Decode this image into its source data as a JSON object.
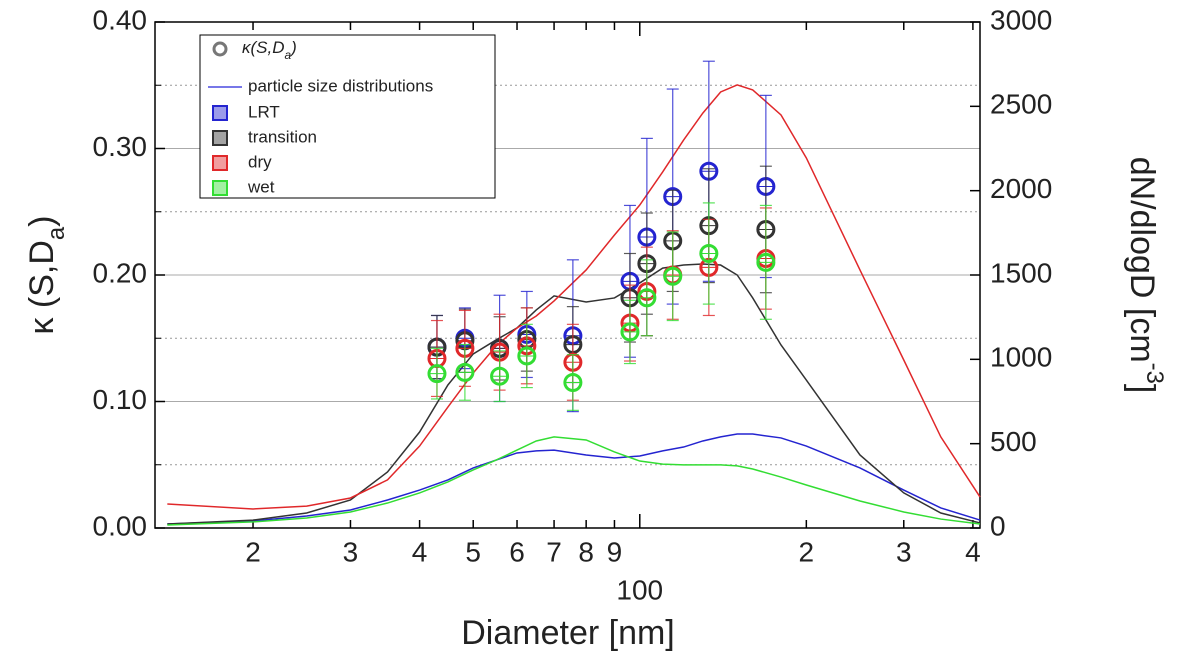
{
  "chart_data": {
    "type": "scatter",
    "xlabel": "Diameter [nm]",
    "ylabel": [
      "κ (S,D",
      "a",
      ")"
    ],
    "y2label": [
      "dN/dlogD [cm",
      "-3",
      "]"
    ],
    "log_x": true,
    "xlim": [
      13.3,
      412
    ],
    "xticks": [
      {
        "value": 20,
        "label": "2"
      },
      {
        "value": 30,
        "label": "3"
      },
      {
        "value": 40,
        "label": "4"
      },
      {
        "value": 50,
        "label": "5"
      },
      {
        "value": 60,
        "label": "6"
      },
      {
        "value": 70,
        "label": "7"
      },
      {
        "value": 80,
        "label": "8"
      },
      {
        "value": 90,
        "label": "9"
      },
      100,
      {
        "value": 200,
        "label": "2"
      },
      {
        "value": 300,
        "label": "3"
      },
      {
        "value": 400,
        "label": "4"
      }
    ],
    "ylim": [
      0,
      0.4
    ],
    "yticks": [
      {
        "value": 0,
        "label": "0.00"
      },
      {
        "value": 0.1,
        "label": "0.10"
      },
      {
        "value": 0.2,
        "label": "0.20"
      },
      {
        "value": 0.3,
        "label": "0.30"
      },
      {
        "value": 0.4,
        "label": "0.40"
      }
    ],
    "yminorticks": [
      0.05,
      0.15,
      0.25,
      0.35
    ],
    "y2lim": [
      0,
      3000
    ],
    "y2ticks": [
      0,
      500,
      1000,
      1500,
      2000,
      2500,
      3000
    ],
    "grid": true,
    "legend": {
      "position": "upper left",
      "marker_label": [
        "κ(S,D",
        "a",
        ")"
      ],
      "line_label": "particle size distributions",
      "marker_color": "#777777",
      "line_color": "#4a4ae0"
    },
    "x": [
      43.0,
      48.3,
      55.8,
      62.5,
      75.7,
      96.0,
      103,
      114.7,
      133.3,
      169
    ],
    "distribution_x": [
      14,
      20,
      25,
      30,
      35,
      40,
      45,
      50,
      55,
      60,
      65,
      70,
      80,
      90,
      100,
      110,
      120,
      130,
      140,
      150,
      160,
      180,
      200,
      250,
      300,
      350,
      412
    ],
    "series": [
      {
        "name": "LRT",
        "color": "#2424d0",
        "values": [
          0.143,
          0.15,
          0.142,
          0.153,
          0.152,
          0.195,
          0.23,
          0.262,
          0.282,
          0.27
        ],
        "errors": [
          0.025,
          0.024,
          0.042,
          0.034,
          0.06,
          0.06,
          0.078,
          0.085,
          0.087,
          0.072
        ],
        "distribution": [
          24,
          42,
          71,
          107,
          166,
          225,
          285,
          356,
          403,
          445,
          457,
          462,
          433,
          415,
          427,
          457,
          480,
          516,
          540,
          557,
          557,
          534,
          486,
          356,
          225,
          119,
          47
        ]
      },
      {
        "name": "transition",
        "color": "#333333",
        "values": [
          0.143,
          0.148,
          0.142,
          0.149,
          0.145,
          0.182,
          0.209,
          0.227,
          0.239,
          0.236
        ],
        "errors": [
          0.025,
          0.025,
          0.025,
          0.025,
          0.03,
          0.035,
          0.04,
          0.04,
          0.045,
          0.05
        ],
        "distribution": [
          24,
          47,
          89,
          166,
          332,
          569,
          848,
          1032,
          1115,
          1186,
          1293,
          1376,
          1340,
          1364,
          1453,
          1541,
          1559,
          1565,
          1559,
          1500,
          1364,
          1085,
          877,
          433,
          208,
          89,
          30
        ]
      },
      {
        "name": "dry",
        "color": "#e0282a",
        "values": [
          0.134,
          0.142,
          0.139,
          0.144,
          0.131,
          0.162,
          0.187,
          0.2,
          0.206,
          0.213
        ],
        "errors": [
          0.03,
          0.03,
          0.03,
          0.03,
          0.03,
          0.03,
          0.035,
          0.035,
          0.038,
          0.04
        ],
        "distribution": [
          142,
          113,
          130,
          178,
          285,
          486,
          717,
          919,
          1079,
          1186,
          1257,
          1346,
          1530,
          1737,
          1915,
          2111,
          2300,
          2460,
          2585,
          2627,
          2597,
          2449,
          2194,
          1530,
          996,
          540,
          184
        ]
      },
      {
        "name": "wet",
        "color": "#33dd33",
        "values": [
          0.122,
          0.123,
          0.12,
          0.136,
          0.115,
          0.155,
          0.182,
          0.199,
          0.217,
          0.21
        ],
        "errors": [
          0.02,
          0.022,
          0.02,
          0.025,
          0.022,
          0.025,
          0.03,
          0.035,
          0.04,
          0.045
        ],
        "distribution": [
          18,
          36,
          59,
          95,
          148,
          208,
          273,
          344,
          403,
          462,
          516,
          540,
          522,
          451,
          397,
          379,
          374,
          374,
          374,
          368,
          350,
          302,
          255,
          160,
          95,
          53,
          24
        ]
      }
    ]
  }
}
